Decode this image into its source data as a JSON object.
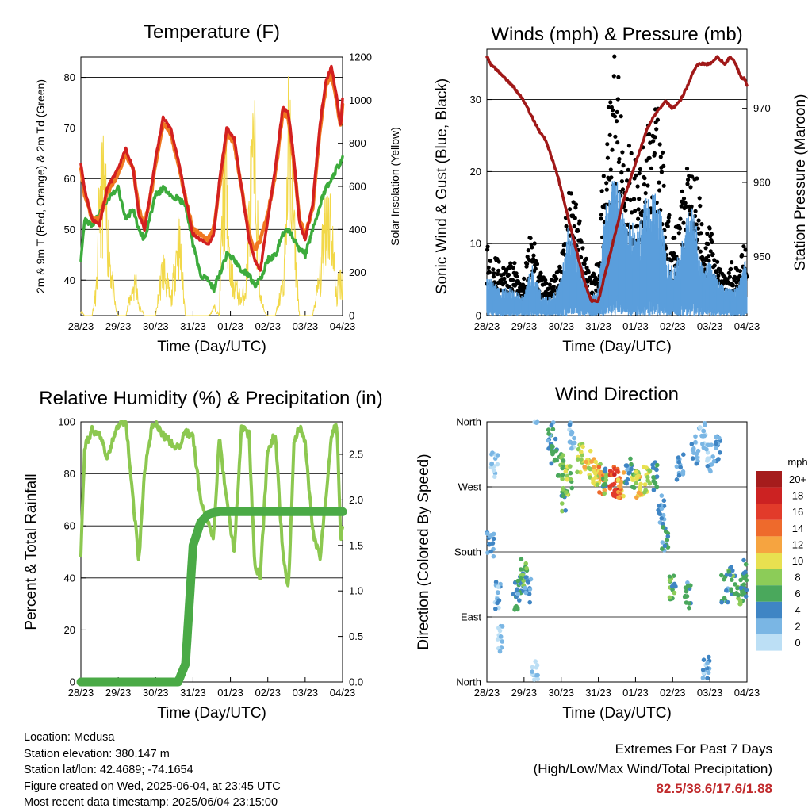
{
  "x_ticks": [
    "28/23",
    "29/23",
    "30/23",
    "31/23",
    "01/23",
    "02/23",
    "03/23",
    "04/23"
  ],
  "x_axis_label": "Time (Day/UTC)",
  "colors": {
    "temp_2m": "#d32020",
    "temp_9m": "#f07820",
    "dewpoint": "#3cab3c",
    "solar": "#f2d848",
    "gust": "#000000",
    "wind": "#5a9edc",
    "pressure": "#a01818",
    "rh": "#8cc850",
    "precip": "#4aaa46"
  },
  "panels": {
    "temperature": {
      "title": "Temperature (F)",
      "ylabel_left": "2m & 9m T (Red, Orange) & 2m Td (Green)",
      "ylabel_right": "Solar Insolation (Yellow)",
      "yticks_left": [
        "40",
        "50",
        "60",
        "70",
        "80"
      ],
      "yticks_right": [
        "0",
        "200",
        "400",
        "600",
        "800",
        "1000",
        "1200"
      ]
    },
    "winds": {
      "title": "Winds (mph) & Pressure (mb)",
      "ylabel_left": "Sonic Wind & Gust (Blue, Black)",
      "ylabel_right": "Station Pressure (Maroon)",
      "yticks_left": [
        "0",
        "10",
        "20",
        "30"
      ],
      "yticks_right": [
        "950",
        "960",
        "970"
      ]
    },
    "humidity": {
      "title": "Relative Humidity (%) & Precipitation (in)",
      "ylabel_left": "Percent & Total Rainfall",
      "yticks_left": [
        "0",
        "20",
        "40",
        "60",
        "80",
        "100"
      ],
      "yticks_right": [
        "0.0",
        "0.5",
        "1.0",
        "1.5",
        "2.0",
        "2.5"
      ]
    },
    "direction": {
      "title": "Wind Direction",
      "ylabel_left": "Direction (Colored By Speed)",
      "yticks_left": [
        "North",
        "East",
        "South",
        "West",
        "North"
      ],
      "legend_title": "mph",
      "legend_labels": [
        "20+",
        "18",
        "16",
        "14",
        "12",
        "10",
        "8",
        "6",
        "4",
        "2",
        "0"
      ],
      "legend_colors": [
        "#a51c1c",
        "#cc2222",
        "#e23b2a",
        "#ee6a2c",
        "#f6a440",
        "#e8e050",
        "#8ccc58",
        "#4aa85c",
        "#3f85c4",
        "#7ab6e4",
        "#bcdff5"
      ]
    }
  },
  "info": {
    "location": "Location: Medusa",
    "elevation": "Station elevation: 380.147 m",
    "latlon": "Station lat/lon: 42.4689; -74.1654",
    "created": "Figure created on Wed, 2025-06-04, at 23:45 UTC",
    "recent": "Most recent data timestamp: 2025/06/04 23:15:00"
  },
  "extremes": {
    "title": "Extremes For Past 7 Days",
    "subtitle": "(High/Low/Max Wind/Total Precipitation)",
    "values": "82.5/38.6/17.6/1.88"
  },
  "chart_data": [
    {
      "type": "line",
      "title": "Temperature (F)",
      "xlabel": "Time (Day/UTC)",
      "x_days": [
        0,
        0.1,
        0.3,
        0.5,
        0.7,
        1.0,
        1.2,
        1.4,
        1.55,
        1.7,
        1.9,
        2.0,
        2.2,
        2.4,
        2.6,
        2.8,
        3.0,
        3.2,
        3.4,
        3.55,
        3.7,
        3.9,
        4.1,
        4.3,
        4.5,
        4.65,
        4.8,
        5.0,
        5.2,
        5.4,
        5.55,
        5.7,
        5.85,
        6.0,
        6.2,
        6.4,
        6.55,
        6.7,
        6.85,
        6.95,
        7.0
      ],
      "ylim": [
        33,
        84
      ],
      "y2lim": [
        0,
        1200
      ],
      "series": [
        {
          "name": "2m T",
          "axis": "left",
          "values": [
            63,
            58,
            52,
            51,
            58,
            62,
            66,
            62,
            53,
            50,
            59,
            64,
            72,
            70,
            64,
            56,
            49,
            48,
            47,
            49,
            59,
            70,
            68,
            58,
            48,
            44,
            42,
            52,
            62,
            74,
            73,
            64,
            51,
            48,
            55,
            71,
            79,
            82,
            76,
            70,
            76
          ]
        },
        {
          "name": "9m T",
          "axis": "left",
          "values": [
            62,
            57,
            52,
            52,
            57,
            61,
            65,
            62,
            54,
            51,
            58,
            63,
            71,
            69,
            63,
            56,
            50,
            49,
            48,
            50,
            58,
            69,
            67,
            58,
            49,
            46,
            48,
            53,
            61,
            73,
            72,
            63,
            52,
            49,
            54,
            70,
            78,
            81,
            75,
            70,
            75
          ]
        },
        {
          "name": "2m Td",
          "axis": "left",
          "values": [
            44,
            52,
            51,
            53,
            56,
            58,
            52,
            54,
            50,
            48,
            54,
            57,
            58,
            57,
            56,
            55,
            47,
            41,
            40,
            38,
            41,
            45,
            44,
            42,
            41,
            39,
            40,
            44,
            45,
            49,
            50,
            48,
            46,
            45,
            50,
            55,
            58,
            60,
            62,
            63,
            64
          ]
        },
        {
          "name": "Solar",
          "axis": "right",
          "values": [
            100,
            0,
            0,
            900,
            400,
            0,
            0,
            600,
            50,
            0,
            0,
            0,
            1000,
            300,
            400,
            0,
            0,
            0,
            0,
            50,
            0,
            1100,
            600,
            300,
            800,
            700,
            100,
            0,
            0,
            600,
            1000,
            400,
            0,
            0,
            0,
            800,
            600,
            400,
            100,
            500,
            700
          ]
        }
      ]
    },
    {
      "type": "line",
      "title": "Winds (mph) & Pressure (mb)",
      "xlabel": "Time (Day/UTC)",
      "x_days": [
        0,
        0.1,
        0.3,
        0.5,
        0.7,
        1.0,
        1.2,
        1.4,
        1.55,
        1.7,
        1.9,
        2.0,
        2.2,
        2.4,
        2.6,
        2.8,
        3.0,
        3.2,
        3.4,
        3.55,
        3.7,
        3.9,
        4.1,
        4.3,
        4.5,
        4.65,
        4.8,
        5.0,
        5.2,
        5.4,
        5.55,
        5.7,
        5.85,
        6.0,
        6.2,
        6.4,
        6.55,
        6.7,
        6.85,
        6.95,
        7.0
      ],
      "ylim": [
        0,
        37
      ],
      "y2lim": [
        942,
        978
      ],
      "series": [
        {
          "name": "Gust",
          "axis": "left",
          "values": [
            8,
            7,
            6,
            5,
            6,
            4,
            10,
            5,
            4,
            4,
            5,
            6,
            14,
            12,
            8,
            4,
            6,
            22,
            30,
            26,
            20,
            18,
            16,
            20,
            24,
            22,
            14,
            8,
            12,
            18,
            20,
            14,
            8,
            10,
            6,
            4,
            6,
            5,
            8,
            9,
            6
          ]
        },
        {
          "name": "Wind",
          "axis": "left",
          "values": [
            4,
            4,
            3,
            3,
            3,
            2,
            6,
            3,
            2,
            2,
            3,
            4,
            10,
            8,
            5,
            2,
            3,
            12,
            15,
            14,
            11,
            10,
            10,
            13,
            14,
            12,
            8,
            5,
            7,
            11,
            12,
            8,
            5,
            6,
            4,
            3,
            3,
            3,
            5,
            6,
            4
          ]
        },
        {
          "name": "Pressure",
          "axis": "right",
          "values": [
            977,
            976,
            975,
            974,
            973,
            971,
            969,
            967,
            966,
            964,
            961,
            959,
            955,
            951,
            947,
            944,
            944,
            948,
            952,
            955,
            958,
            961,
            964,
            967,
            969,
            970,
            971,
            970,
            971,
            973,
            975,
            976,
            976,
            976,
            977,
            976,
            977,
            976,
            974,
            974,
            973
          ]
        }
      ]
    },
    {
      "type": "line",
      "title": "Relative Humidity (%) & Precipitation (in)",
      "xlabel": "Time (Day/UTC)",
      "x_days": [
        0,
        0.1,
        0.3,
        0.5,
        0.7,
        1.0,
        1.2,
        1.4,
        1.55,
        1.7,
        1.9,
        2.0,
        2.2,
        2.4,
        2.6,
        2.8,
        3.0,
        3.2,
        3.4,
        3.55,
        3.7,
        3.9,
        4.1,
        4.3,
        4.5,
        4.65,
        4.8,
        5.0,
        5.2,
        5.4,
        5.55,
        5.7,
        5.85,
        6.0,
        6.2,
        6.4,
        6.55,
        6.7,
        6.85,
        6.95,
        7.0
      ],
      "ylim": [
        0,
        100
      ],
      "y2lim": [
        0,
        2.857
      ],
      "series": [
        {
          "name": "RH",
          "axis": "left",
          "values": [
            50,
            90,
            97,
            95,
            86,
            99,
            100,
            70,
            46,
            80,
            98,
            99,
            95,
            92,
            90,
            96,
            94,
            70,
            62,
            55,
            94,
            70,
            50,
            98,
            95,
            45,
            40,
            90,
            95,
            50,
            35,
            92,
            98,
            92,
            58,
            48,
            70,
            95,
            99,
            55,
            60
          ]
        },
        {
          "name": "Precip",
          "axis": "right",
          "values": [
            0,
            0,
            0,
            0,
            0,
            0,
            0,
            0,
            0,
            0,
            0,
            0,
            0,
            0,
            0,
            0.2,
            1.5,
            1.75,
            1.84,
            1.86,
            1.87,
            1.87,
            1.87,
            1.87,
            1.87,
            1.87,
            1.87,
            1.87,
            1.87,
            1.87,
            1.87,
            1.87,
            1.87,
            1.87,
            1.87,
            1.87,
            1.87,
            1.87,
            1.87,
            1.87,
            1.87
          ]
        }
      ]
    },
    {
      "type": "scatter",
      "title": "Wind Direction",
      "xlabel": "Time (Day/UTC)",
      "ylabel": "Direction (Colored By Speed)",
      "ylim": [
        0,
        360
      ],
      "points": [
        {
          "x": 0.1,
          "dir": 190,
          "speed": 3
        },
        {
          "x": 0.2,
          "dir": 300,
          "speed": 1
        },
        {
          "x": 0.3,
          "dir": 120,
          "speed": 2
        },
        {
          "x": 0.35,
          "dir": 60,
          "speed": 1
        },
        {
          "x": 0.8,
          "dir": 120,
          "speed": 5
        },
        {
          "x": 0.9,
          "dir": 140,
          "speed": 4
        },
        {
          "x": 1.0,
          "dir": 150,
          "speed": 7
        },
        {
          "x": 1.1,
          "dir": 130,
          "speed": 3
        },
        {
          "x": 1.3,
          "dir": 10,
          "speed": 1
        },
        {
          "x": 1.7,
          "dir": 340,
          "speed": 4
        },
        {
          "x": 1.8,
          "dir": 320,
          "speed": 5
        },
        {
          "x": 2.0,
          "dir": 300,
          "speed": 7
        },
        {
          "x": 2.1,
          "dir": 250,
          "speed": 6
        },
        {
          "x": 2.2,
          "dir": 280,
          "speed": 8
        },
        {
          "x": 2.3,
          "dir": 340,
          "speed": 2
        },
        {
          "x": 2.5,
          "dir": 310,
          "speed": 9
        },
        {
          "x": 2.7,
          "dir": 300,
          "speed": 10
        },
        {
          "x": 2.9,
          "dir": 290,
          "speed": 11
        },
        {
          "x": 3.0,
          "dir": 285,
          "speed": 9
        },
        {
          "x": 3.1,
          "dir": 280,
          "speed": 13
        },
        {
          "x": 3.2,
          "dir": 275,
          "speed": 6
        },
        {
          "x": 3.4,
          "dir": 280,
          "speed": 15
        },
        {
          "x": 3.5,
          "dir": 275,
          "speed": 16
        },
        {
          "x": 3.6,
          "dir": 270,
          "speed": 12
        },
        {
          "x": 3.8,
          "dir": 290,
          "speed": 4
        },
        {
          "x": 4.0,
          "dir": 280,
          "speed": 8
        },
        {
          "x": 4.1,
          "dir": 275,
          "speed": 11
        },
        {
          "x": 4.3,
          "dir": 280,
          "speed": 9
        },
        {
          "x": 4.5,
          "dir": 285,
          "speed": 5
        },
        {
          "x": 4.7,
          "dir": 240,
          "speed": 3
        },
        {
          "x": 4.8,
          "dir": 200,
          "speed": 4
        },
        {
          "x": 5.0,
          "dir": 130,
          "speed": 6
        },
        {
          "x": 5.2,
          "dir": 300,
          "speed": 3
        },
        {
          "x": 5.4,
          "dir": 120,
          "speed": 4
        },
        {
          "x": 5.6,
          "dir": 320,
          "speed": 2
        },
        {
          "x": 5.8,
          "dir": 340,
          "speed": 1
        },
        {
          "x": 5.9,
          "dir": 20,
          "speed": 2
        },
        {
          "x": 6.0,
          "dir": 310,
          "speed": 2
        },
        {
          "x": 6.2,
          "dir": 320,
          "speed": 3
        },
        {
          "x": 6.4,
          "dir": 130,
          "speed": 4
        },
        {
          "x": 6.6,
          "dir": 140,
          "speed": 6
        },
        {
          "x": 6.8,
          "dir": 120,
          "speed": 7
        },
        {
          "x": 6.9,
          "dir": 130,
          "speed": 5
        },
        {
          "x": 7.0,
          "dir": 150,
          "speed": 4
        }
      ]
    }
  ]
}
